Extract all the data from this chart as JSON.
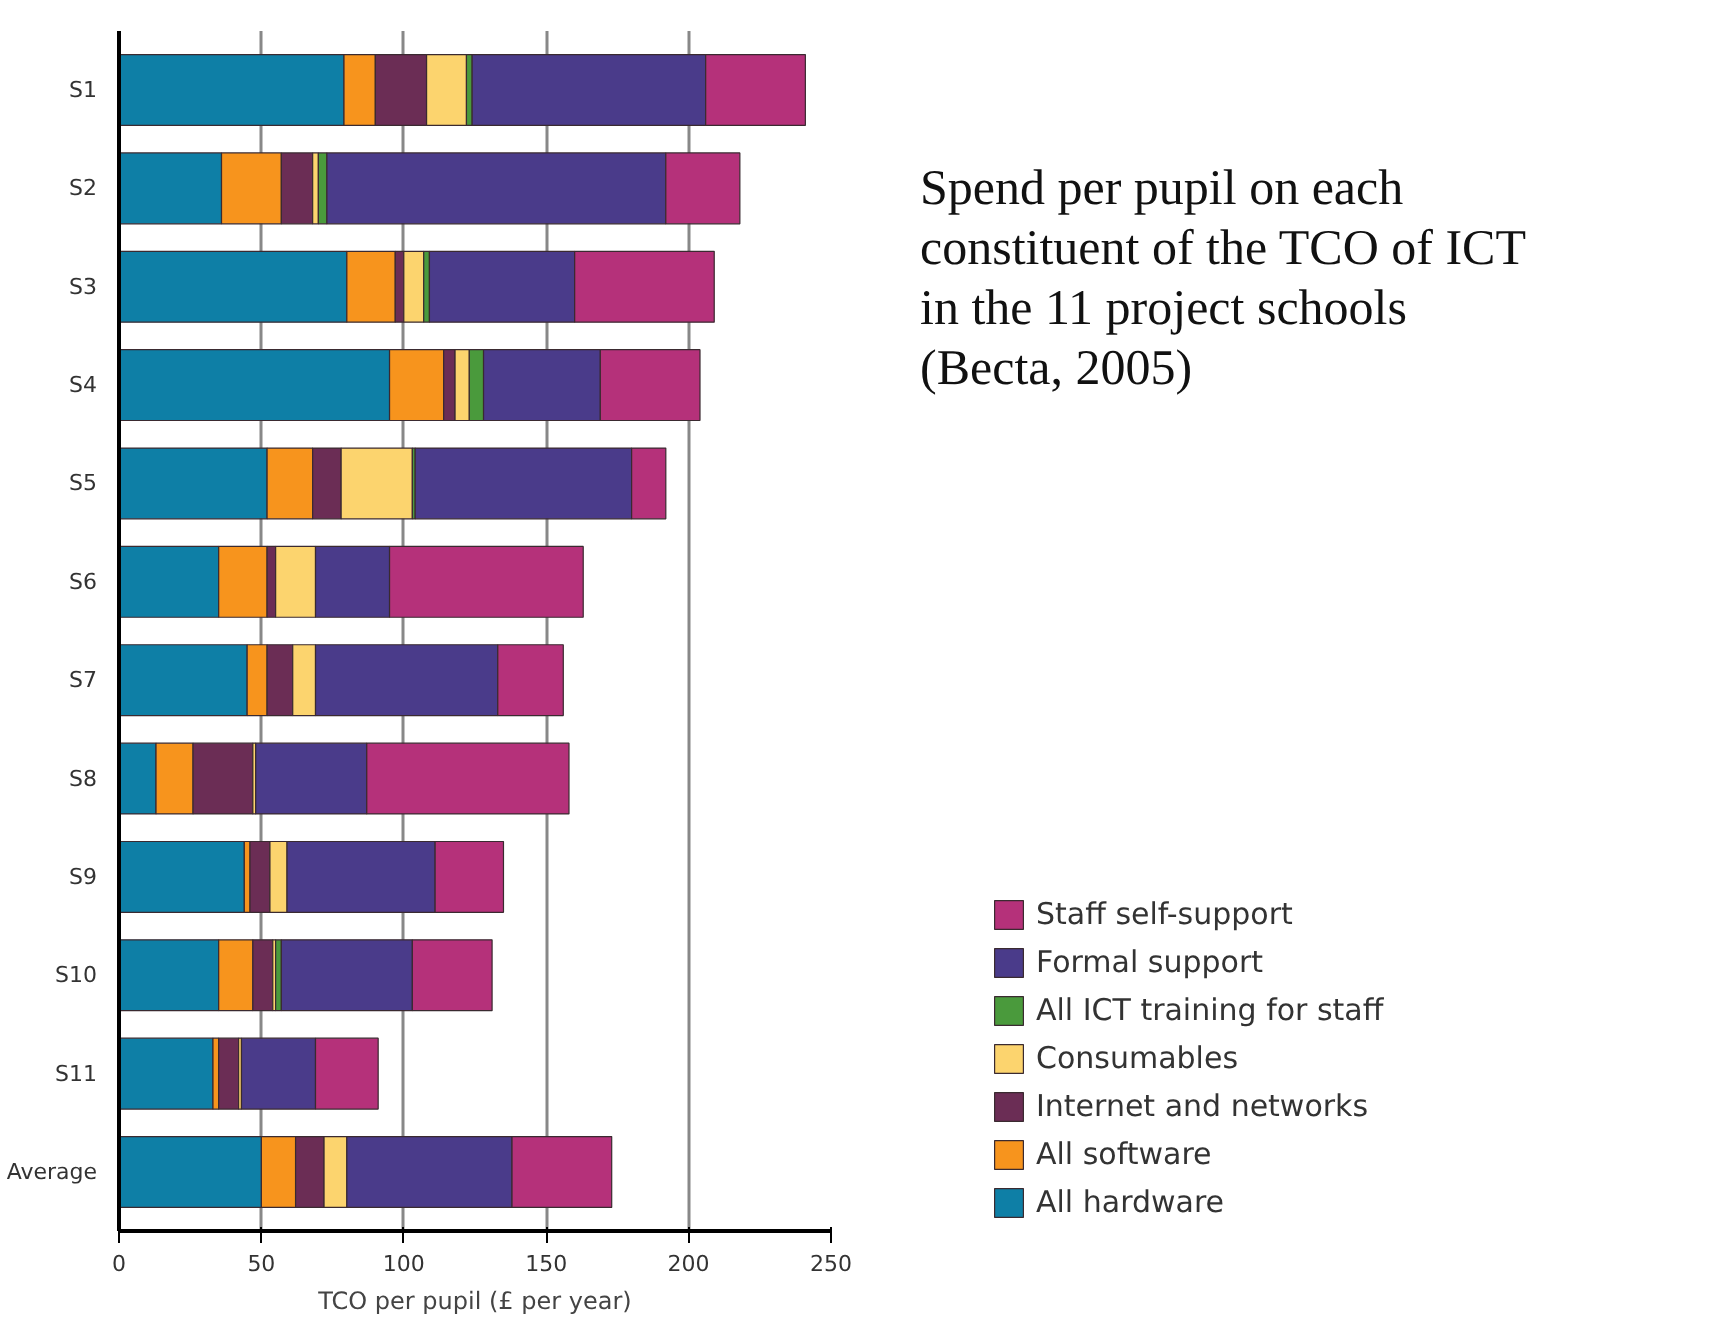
{
  "chart_data": {
    "type": "bar",
    "orientation": "horizontal",
    "stacked": true,
    "title": "Spend per pupil on each constituent of the TCO of ICT in the 11 project schools (Becta, 2005)",
    "xlabel": "TCO per pupil (£ per year)",
    "categories": [
      "S1",
      "S2",
      "S3",
      "S4",
      "S5",
      "S6",
      "S7",
      "S8",
      "S9",
      "S10",
      "S11",
      "Average"
    ],
    "series": [
      {
        "name": "All hardware",
        "color": "#0e7fa6",
        "values": [
          79,
          36,
          80,
          95,
          52,
          35,
          45,
          13,
          44,
          35,
          33,
          50
        ]
      },
      {
        "name": "All software",
        "color": "#f7941d",
        "values": [
          11,
          21,
          17,
          19,
          16,
          17,
          7,
          13,
          2,
          12,
          2,
          12
        ]
      },
      {
        "name": "Internet and networks",
        "color": "#6b2d55",
        "values": [
          18,
          11,
          3,
          4,
          10,
          3,
          9,
          21,
          7,
          7,
          7,
          10
        ]
      },
      {
        "name": "Consumables",
        "color": "#fcd46e",
        "values": [
          14,
          2,
          7,
          5,
          25,
          14,
          8,
          1,
          6,
          1,
          1,
          8
        ]
      },
      {
        "name": "All ICT training for staff",
        "color": "#4a9a3c",
        "values": [
          2,
          3,
          2,
          5,
          1,
          0,
          0,
          0,
          0,
          2,
          0,
          0
        ]
      },
      {
        "name": "Formal support",
        "color": "#4a3b8a",
        "values": [
          82,
          119,
          51,
          41,
          76,
          26,
          64,
          39,
          52,
          46,
          26,
          58
        ]
      },
      {
        "name": "Staff self-support",
        "color": "#b5317a",
        "values": [
          35,
          26,
          49,
          35,
          12,
          68,
          23,
          71,
          24,
          28,
          22,
          35
        ]
      }
    ],
    "xlim": [
      0,
      250
    ],
    "xticks": [
      0,
      50,
      100,
      150,
      200,
      250
    ],
    "grid": "x",
    "legend": "bottom right"
  }
}
